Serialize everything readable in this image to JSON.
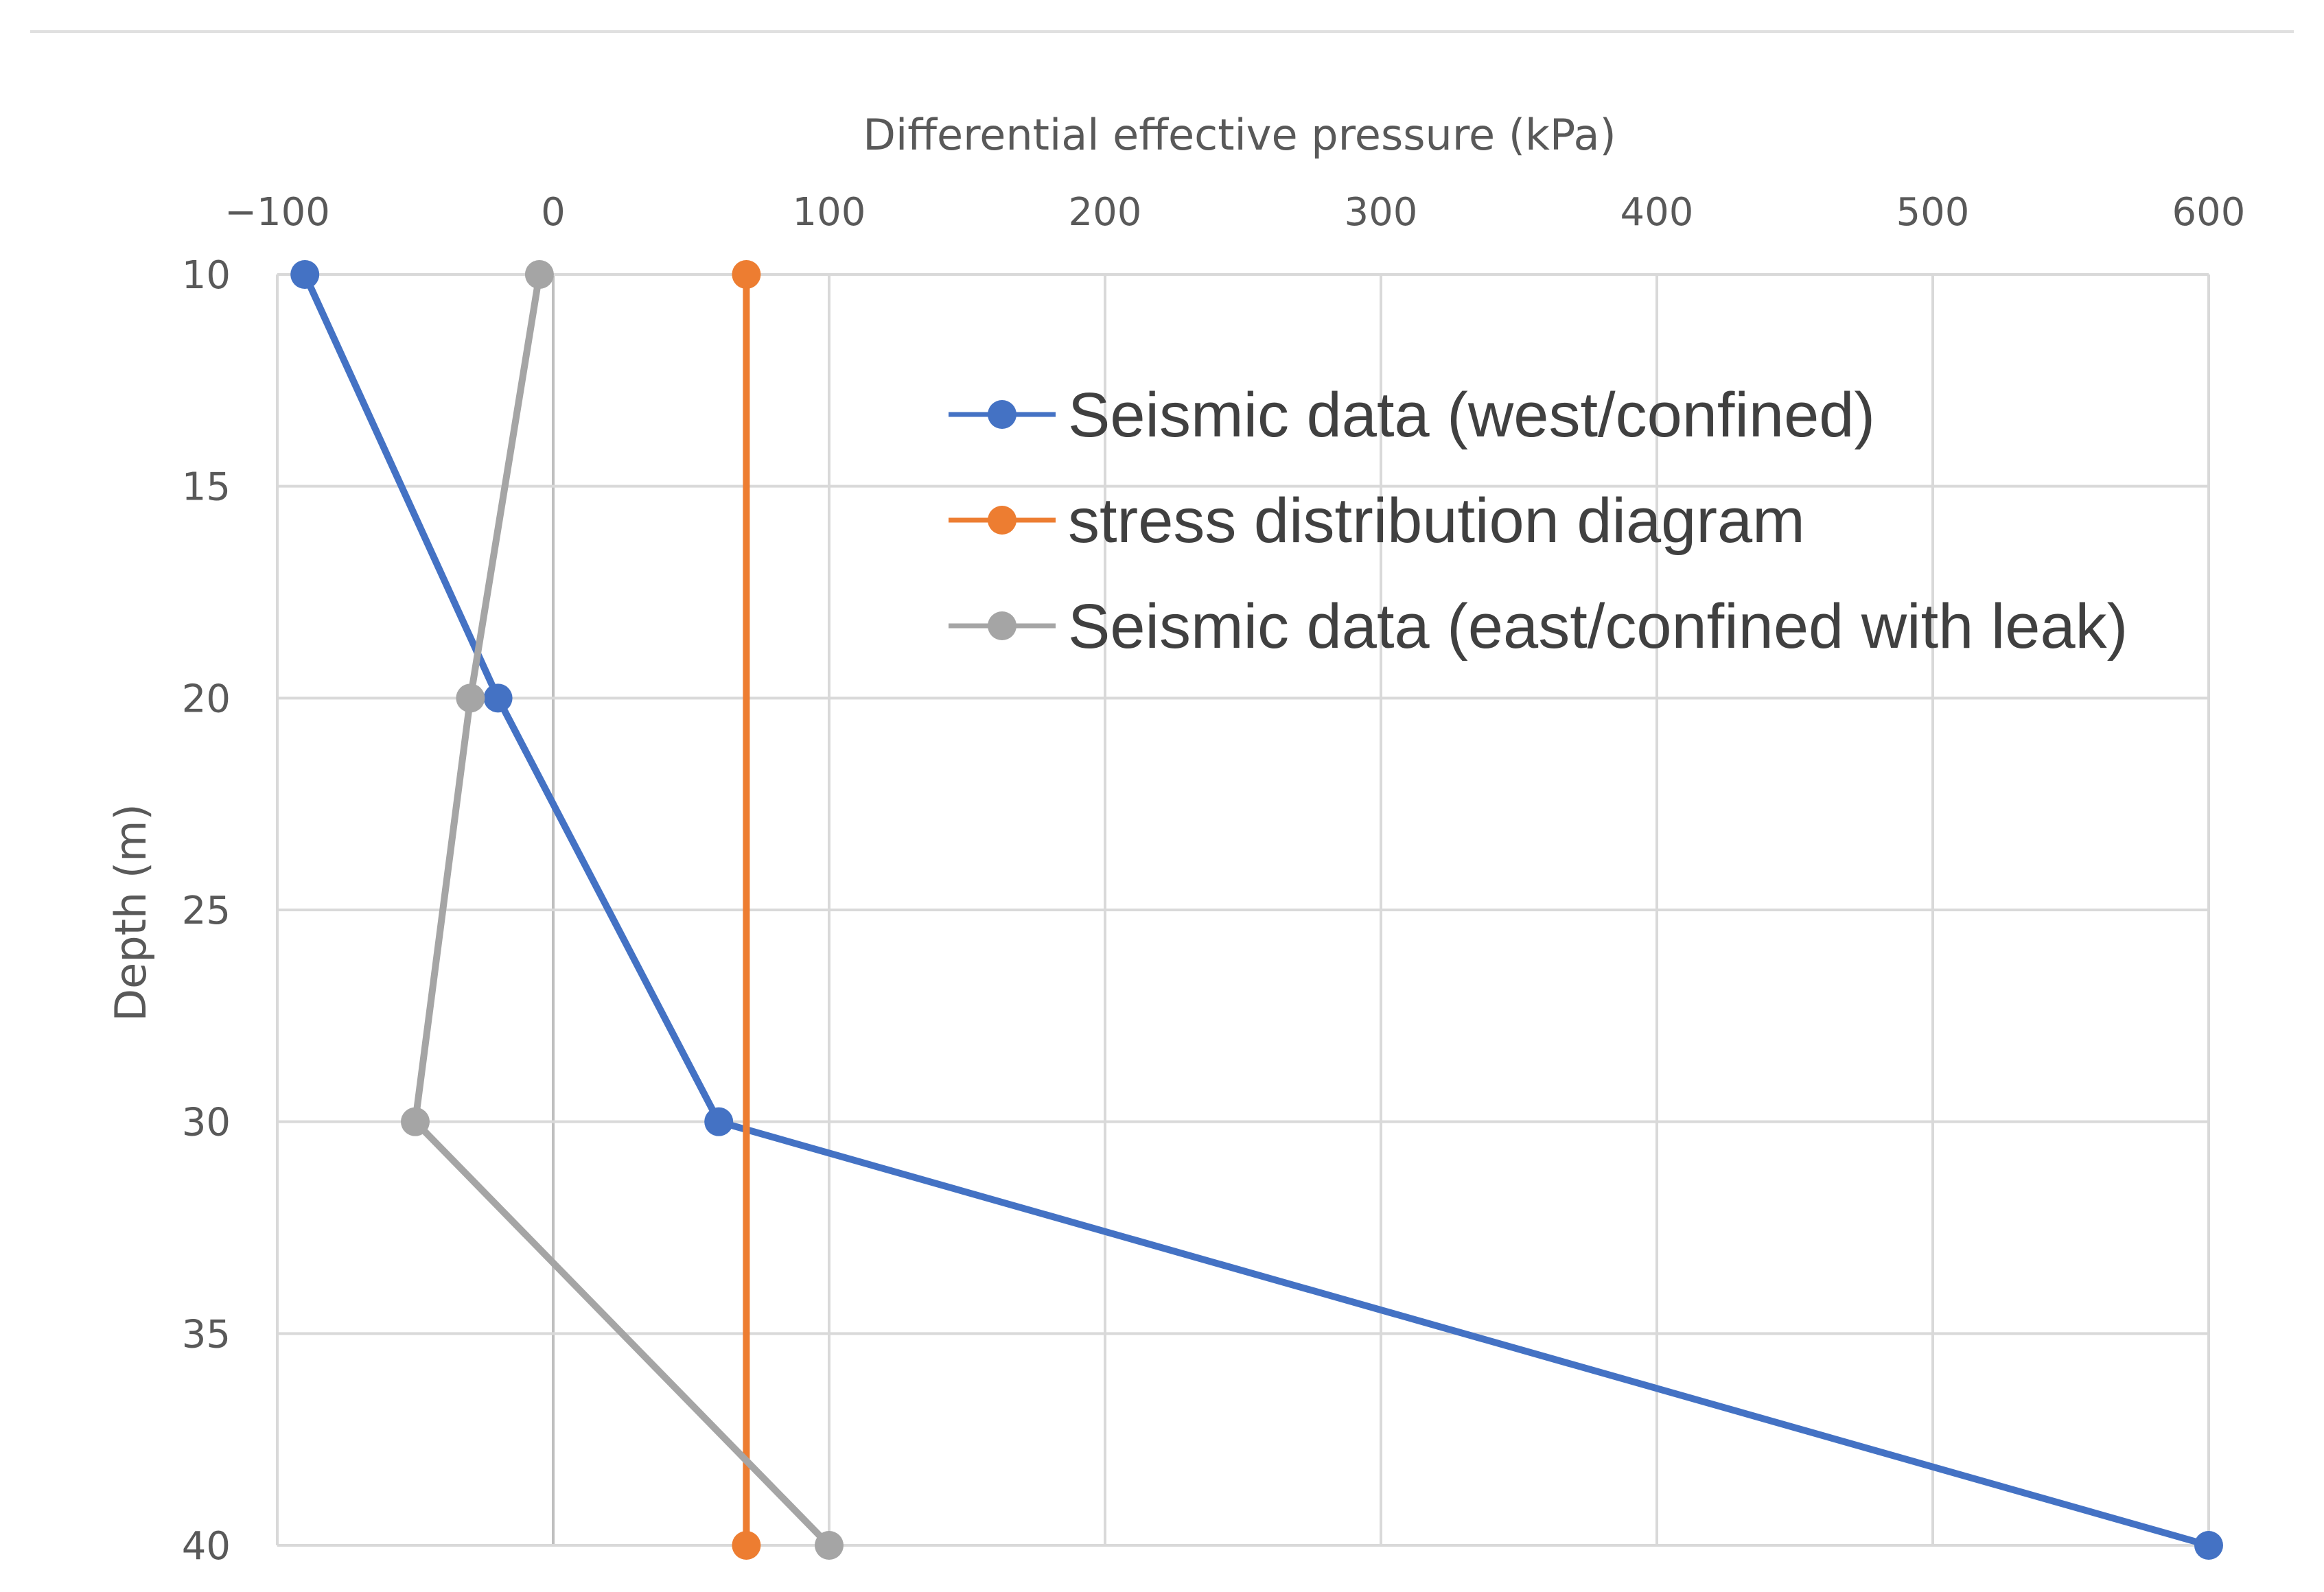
{
  "chart_data": {
    "type": "line",
    "title": "",
    "xlabel": "Differential effective pressure (kPa)",
    "ylabel": "Depth (m)",
    "xlim": [
      -100,
      600
    ],
    "ylim": [
      10,
      40
    ],
    "y_inverted": true,
    "x_axis_position": "top",
    "grid": true,
    "legend_position": "top-right",
    "x_ticks": [
      -100,
      0,
      100,
      200,
      300,
      400,
      500,
      600
    ],
    "x_tick_labels": [
      "−100",
      "0",
      "100",
      "200",
      "300",
      "400",
      "500",
      "600"
    ],
    "y_ticks": [
      10,
      15,
      20,
      25,
      30,
      35,
      40
    ],
    "y_tick_labels": [
      "10",
      "15",
      "20",
      "25",
      "30",
      "35",
      "40"
    ],
    "series": [
      {
        "name": "Seismic data (west/confined)",
        "color": "#4472C4",
        "points": [
          {
            "x": -90,
            "y": 10
          },
          {
            "x": -20,
            "y": 20
          },
          {
            "x": 60,
            "y": 30
          },
          {
            "x": 600,
            "y": 40
          }
        ]
      },
      {
        "name": "stress distribution diagram",
        "color": "#ED7D31",
        "points": [
          {
            "x": 70,
            "y": 10
          },
          {
            "x": 70,
            "y": 40
          }
        ]
      },
      {
        "name": "Seismic data (east/confined with leak)",
        "color": "#A5A5A5",
        "points": [
          {
            "x": -5,
            "y": 10
          },
          {
            "x": -30,
            "y": 20
          },
          {
            "x": -50,
            "y": 30
          },
          {
            "x": 100,
            "y": 40
          }
        ]
      }
    ]
  }
}
